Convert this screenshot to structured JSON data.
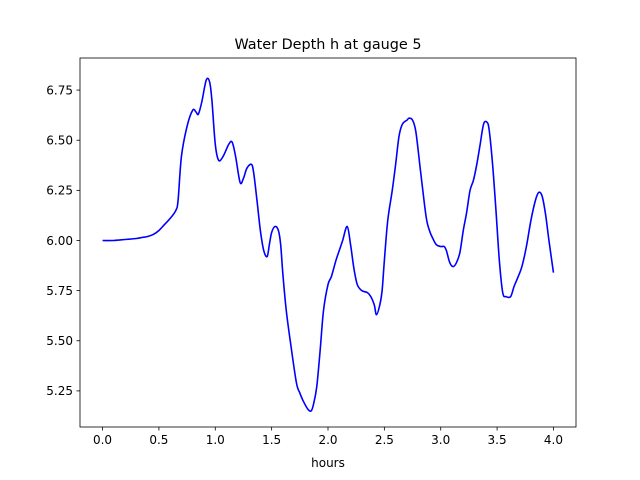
{
  "chart_data": {
    "type": "line",
    "title": "Water Depth h at gauge 5",
    "xlabel": "hours",
    "ylabel": "",
    "xlim": [
      -0.2,
      4.2
    ],
    "ylim": [
      5.07,
      6.91
    ],
    "x_ticks": [
      0.0,
      0.5,
      1.0,
      1.5,
      2.0,
      2.5,
      3.0,
      3.5,
      4.0
    ],
    "x_tick_labels": [
      "0.0",
      "0.5",
      "1.0",
      "1.5",
      "2.0",
      "2.5",
      "3.0",
      "3.5",
      "4.0"
    ],
    "y_ticks": [
      5.25,
      5.5,
      5.75,
      6.0,
      6.25,
      6.5,
      6.75
    ],
    "y_tick_labels": [
      "5.25",
      "5.50",
      "5.75",
      "6.00",
      "6.25",
      "6.50",
      "6.75"
    ],
    "grid": false,
    "series": [
      {
        "color": "#0000ff",
        "x": [
          0.0,
          0.1,
          0.2,
          0.3,
          0.35,
          0.4,
          0.45,
          0.5,
          0.55,
          0.6,
          0.65,
          0.67,
          0.7,
          0.75,
          0.8,
          0.83,
          0.85,
          0.88,
          0.92,
          0.95,
          0.97,
          1.0,
          1.03,
          1.07,
          1.12,
          1.15,
          1.18,
          1.22,
          1.25,
          1.28,
          1.32,
          1.34,
          1.37,
          1.4,
          1.43,
          1.46,
          1.48,
          1.5,
          1.53,
          1.56,
          1.58,
          1.6,
          1.63,
          1.67,
          1.72,
          1.75,
          1.78,
          1.82,
          1.85,
          1.87,
          1.9,
          1.93,
          1.96,
          2.0,
          2.03,
          2.07,
          2.1,
          2.13,
          2.17,
          2.2,
          2.23,
          2.26,
          2.3,
          2.35,
          2.38,
          2.41,
          2.43,
          2.46,
          2.48,
          2.5,
          2.53,
          2.57,
          2.6,
          2.63,
          2.66,
          2.7,
          2.72,
          2.75,
          2.78,
          2.82,
          2.87,
          2.9,
          2.93,
          2.96,
          3.0,
          3.03,
          3.05,
          3.08,
          3.11,
          3.14,
          3.17,
          3.2,
          3.23,
          3.26,
          3.29,
          3.32,
          3.35,
          3.38,
          3.41,
          3.43,
          3.46,
          3.49,
          3.52,
          3.55,
          3.58,
          3.62,
          3.65,
          3.68,
          3.72,
          3.76,
          3.8,
          3.84,
          3.87,
          3.9,
          3.93,
          3.96,
          4.0
        ],
        "y": [
          6.0,
          6.0,
          6.005,
          6.01,
          6.015,
          6.02,
          6.03,
          6.05,
          6.08,
          6.11,
          6.15,
          6.2,
          6.42,
          6.57,
          6.65,
          6.64,
          6.63,
          6.69,
          6.8,
          6.79,
          6.7,
          6.48,
          6.4,
          6.42,
          6.48,
          6.49,
          6.42,
          6.29,
          6.31,
          6.36,
          6.38,
          6.34,
          6.2,
          6.05,
          5.95,
          5.92,
          5.98,
          6.04,
          6.07,
          6.05,
          5.98,
          5.83,
          5.65,
          5.48,
          5.29,
          5.24,
          5.2,
          5.16,
          5.15,
          5.18,
          5.27,
          5.45,
          5.65,
          5.78,
          5.82,
          5.9,
          5.95,
          6.0,
          6.07,
          5.98,
          5.86,
          5.78,
          5.75,
          5.74,
          5.72,
          5.68,
          5.63,
          5.68,
          5.75,
          5.9,
          6.1,
          6.25,
          6.38,
          6.52,
          6.58,
          6.6,
          6.61,
          6.6,
          6.54,
          6.35,
          6.12,
          6.05,
          6.01,
          5.98,
          5.97,
          5.97,
          5.95,
          5.89,
          5.87,
          5.89,
          5.94,
          6.05,
          6.14,
          6.25,
          6.3,
          6.38,
          6.48,
          6.58,
          6.59,
          6.55,
          6.38,
          6.15,
          5.9,
          5.74,
          5.72,
          5.72,
          5.77,
          5.81,
          5.87,
          5.97,
          6.1,
          6.2,
          6.24,
          6.22,
          6.13,
          6.0,
          5.84
        ]
      }
    ]
  }
}
